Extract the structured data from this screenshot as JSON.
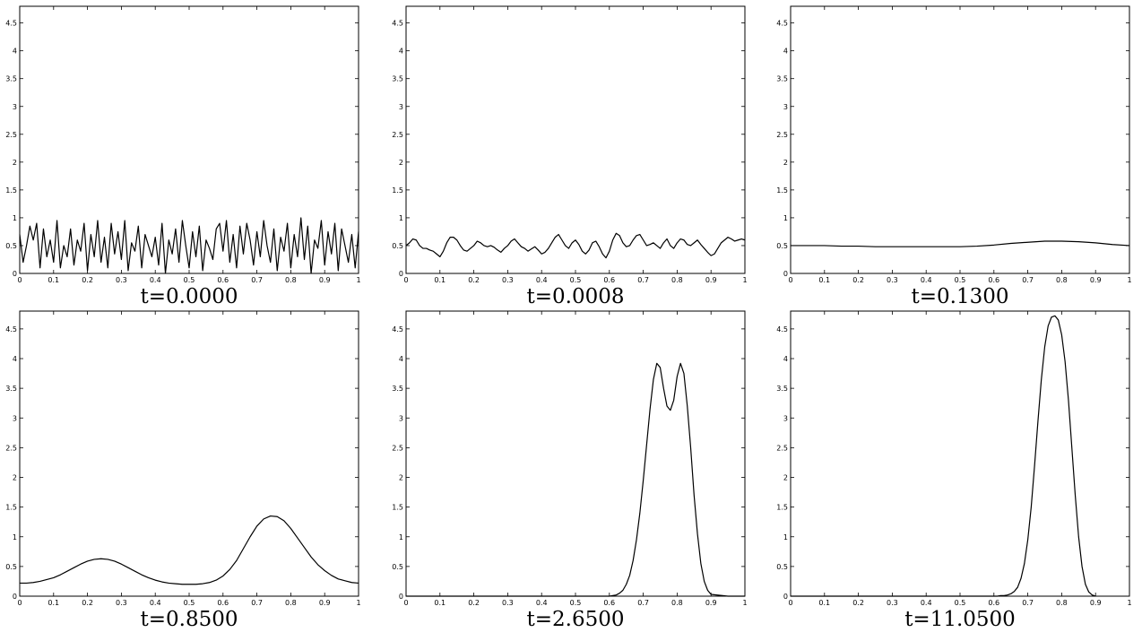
{
  "chart_data": [
    {
      "type": "line",
      "title": "t=0.0000",
      "color": "#000000",
      "xlim": [
        0,
        1
      ],
      "ylim": [
        0,
        4.8
      ],
      "xticks": [
        0,
        0.1,
        0.2,
        0.3,
        0.4,
        0.5,
        0.6,
        0.7,
        0.8,
        0.9,
        1
      ],
      "yticks": [
        0,
        0.5,
        1,
        1.5,
        2,
        2.5,
        3,
        3.5,
        4,
        4.5
      ],
      "x": [
        0,
        0.01,
        0.02,
        0.03,
        0.04,
        0.05,
        0.06,
        0.07,
        0.08,
        0.09,
        0.1,
        0.11,
        0.12,
        0.13,
        0.14,
        0.15,
        0.16,
        0.17,
        0.18,
        0.19,
        0.2,
        0.21,
        0.22,
        0.23,
        0.24,
        0.25,
        0.26,
        0.27,
        0.28,
        0.29,
        0.3,
        0.31,
        0.32,
        0.33,
        0.34,
        0.35,
        0.36,
        0.37,
        0.38,
        0.39,
        0.4,
        0.41,
        0.42,
        0.43,
        0.44,
        0.45,
        0.46,
        0.47,
        0.48,
        0.49,
        0.5,
        0.51,
        0.52,
        0.53,
        0.54,
        0.55,
        0.56,
        0.57,
        0.58,
        0.59,
        0.6,
        0.61,
        0.62,
        0.63,
        0.64,
        0.65,
        0.66,
        0.67,
        0.68,
        0.69,
        0.7,
        0.71,
        0.72,
        0.73,
        0.74,
        0.75,
        0.76,
        0.77,
        0.78,
        0.79,
        0.8,
        0.81,
        0.82,
        0.83,
        0.84,
        0.85,
        0.86,
        0.87,
        0.88,
        0.89,
        0.9,
        0.91,
        0.92,
        0.93,
        0.94,
        0.95,
        0.96,
        0.97,
        0.98,
        0.99,
        1
      ],
      "values": [
        0.7,
        0.2,
        0.5,
        0.85,
        0.6,
        0.9,
        0.1,
        0.8,
        0.3,
        0.6,
        0.2,
        0.95,
        0.1,
        0.5,
        0.3,
        0.8,
        0.15,
        0.6,
        0.4,
        0.9,
        0.05,
        0.7,
        0.3,
        0.95,
        0.2,
        0.65,
        0.1,
        0.9,
        0.35,
        0.75,
        0.25,
        0.95,
        0.05,
        0.55,
        0.4,
        0.85,
        0.1,
        0.7,
        0.5,
        0.3,
        0.65,
        0.15,
        0.9,
        0,
        0.6,
        0.35,
        0.8,
        0.2,
        0.95,
        0.5,
        0.1,
        0.75,
        0.3,
        0.85,
        0.05,
        0.6,
        0.45,
        0.25,
        0.8,
        0.9,
        0.4,
        0.95,
        0.2,
        0.7,
        0.1,
        0.85,
        0.35,
        0.9,
        0.6,
        0.15,
        0.75,
        0.3,
        0.95,
        0.5,
        0.2,
        0.8,
        0.05,
        0.65,
        0.4,
        0.9,
        0.1,
        0.7,
        0.3,
        1,
        0.25,
        0.85,
        0,
        0.6,
        0.45,
        0.95,
        0.15,
        0.75,
        0.35,
        0.9,
        0.05,
        0.8,
        0.5,
        0.2,
        0.7,
        0.1,
        0.75
      ]
    },
    {
      "type": "line",
      "title": "t=0.0008",
      "color": "#000000",
      "xlim": [
        0,
        1
      ],
      "ylim": [
        0,
        4.8
      ],
      "xticks": [
        0,
        0.1,
        0.2,
        0.3,
        0.4,
        0.5,
        0.6,
        0.7,
        0.8,
        0.9,
        1
      ],
      "yticks": [
        0,
        0.5,
        1,
        1.5,
        2,
        2.5,
        3,
        3.5,
        4,
        4.5
      ],
      "x": [
        0,
        0.01,
        0.02,
        0.03,
        0.04,
        0.05,
        0.06,
        0.07,
        0.08,
        0.09,
        0.1,
        0.11,
        0.12,
        0.13,
        0.14,
        0.15,
        0.16,
        0.17,
        0.18,
        0.19,
        0.2,
        0.21,
        0.22,
        0.23,
        0.24,
        0.25,
        0.26,
        0.27,
        0.28,
        0.29,
        0.3,
        0.31,
        0.32,
        0.33,
        0.34,
        0.35,
        0.36,
        0.37,
        0.38,
        0.39,
        0.4,
        0.41,
        0.42,
        0.43,
        0.44,
        0.45,
        0.46,
        0.47,
        0.48,
        0.49,
        0.5,
        0.51,
        0.52,
        0.53,
        0.54,
        0.55,
        0.56,
        0.57,
        0.58,
        0.59,
        0.6,
        0.61,
        0.62,
        0.63,
        0.64,
        0.65,
        0.66,
        0.67,
        0.68,
        0.69,
        0.7,
        0.71,
        0.72,
        0.73,
        0.74,
        0.75,
        0.76,
        0.77,
        0.78,
        0.79,
        0.8,
        0.81,
        0.82,
        0.83,
        0.84,
        0.85,
        0.86,
        0.87,
        0.88,
        0.89,
        0.9,
        0.91,
        0.92,
        0.93,
        0.94,
        0.95,
        0.96,
        0.97,
        0.98,
        0.99,
        1
      ],
      "values": [
        0.5,
        0.55,
        0.62,
        0.6,
        0.5,
        0.45,
        0.45,
        0.42,
        0.4,
        0.35,
        0.3,
        0.4,
        0.55,
        0.65,
        0.65,
        0.6,
        0.5,
        0.42,
        0.4,
        0.45,
        0.5,
        0.58,
        0.55,
        0.5,
        0.48,
        0.5,
        0.47,
        0.42,
        0.38,
        0.45,
        0.5,
        0.58,
        0.62,
        0.55,
        0.48,
        0.45,
        0.4,
        0.44,
        0.48,
        0.42,
        0.35,
        0.38,
        0.45,
        0.55,
        0.65,
        0.7,
        0.6,
        0.5,
        0.45,
        0.55,
        0.6,
        0.52,
        0.4,
        0.35,
        0.42,
        0.55,
        0.58,
        0.48,
        0.35,
        0.28,
        0.4,
        0.6,
        0.72,
        0.68,
        0.55,
        0.48,
        0.5,
        0.6,
        0.68,
        0.7,
        0.6,
        0.5,
        0.52,
        0.55,
        0.5,
        0.45,
        0.55,
        0.62,
        0.5,
        0.45,
        0.55,
        0.62,
        0.6,
        0.52,
        0.5,
        0.55,
        0.6,
        0.52,
        0.45,
        0.38,
        0.32,
        0.35,
        0.45,
        0.55,
        0.6,
        0.65,
        0.62,
        0.58,
        0.6,
        0.62,
        0.6
      ]
    },
    {
      "type": "line",
      "title": "t=0.1300",
      "color": "#000000",
      "xlim": [
        0,
        1
      ],
      "ylim": [
        0,
        4.8
      ],
      "xticks": [
        0,
        0.1,
        0.2,
        0.3,
        0.4,
        0.5,
        0.6,
        0.7,
        0.8,
        0.9,
        1
      ],
      "yticks": [
        0,
        0.5,
        1,
        1.5,
        2,
        2.5,
        3,
        3.5,
        4,
        4.5
      ],
      "x": [
        0,
        0.05,
        0.1,
        0.15,
        0.2,
        0.25,
        0.3,
        0.35,
        0.4,
        0.45,
        0.5,
        0.55,
        0.6,
        0.65,
        0.7,
        0.75,
        0.8,
        0.85,
        0.9,
        0.95,
        1
      ],
      "values": [
        0.5,
        0.5,
        0.5,
        0.49,
        0.49,
        0.48,
        0.48,
        0.48,
        0.48,
        0.48,
        0.48,
        0.49,
        0.51,
        0.54,
        0.56,
        0.58,
        0.58,
        0.57,
        0.55,
        0.52,
        0.5
      ]
    },
    {
      "type": "line",
      "title": "t=0.8500",
      "color": "#000000",
      "xlim": [
        0,
        1
      ],
      "ylim": [
        0,
        4.8
      ],
      "xticks": [
        0,
        0.1,
        0.2,
        0.3,
        0.4,
        0.5,
        0.6,
        0.7,
        0.8,
        0.9,
        1
      ],
      "yticks": [
        0,
        0.5,
        1,
        1.5,
        2,
        2.5,
        3,
        3.5,
        4,
        4.5
      ],
      "x": [
        0,
        0.02,
        0.04,
        0.06,
        0.08,
        0.1,
        0.12,
        0.14,
        0.16,
        0.18,
        0.2,
        0.22,
        0.24,
        0.26,
        0.28,
        0.3,
        0.32,
        0.34,
        0.36,
        0.38,
        0.4,
        0.42,
        0.44,
        0.46,
        0.48,
        0.5,
        0.52,
        0.54,
        0.56,
        0.58,
        0.6,
        0.62,
        0.64,
        0.66,
        0.68,
        0.7,
        0.72,
        0.74,
        0.76,
        0.78,
        0.8,
        0.82,
        0.84,
        0.86,
        0.88,
        0.9,
        0.92,
        0.94,
        0.96,
        0.98,
        1
      ],
      "values": [
        0.22,
        0.22,
        0.23,
        0.25,
        0.28,
        0.31,
        0.36,
        0.42,
        0.48,
        0.54,
        0.59,
        0.62,
        0.63,
        0.62,
        0.59,
        0.54,
        0.48,
        0.42,
        0.36,
        0.31,
        0.27,
        0.24,
        0.22,
        0.21,
        0.2,
        0.2,
        0.2,
        0.21,
        0.23,
        0.27,
        0.34,
        0.45,
        0.6,
        0.8,
        1.0,
        1.18,
        1.3,
        1.35,
        1.34,
        1.27,
        1.14,
        0.98,
        0.82,
        0.66,
        0.53,
        0.43,
        0.35,
        0.29,
        0.26,
        0.23,
        0.22
      ]
    },
    {
      "type": "line",
      "title": "t=2.6500",
      "color": "#000000",
      "xlim": [
        0,
        1
      ],
      "ylim": [
        0,
        4.8
      ],
      "xticks": [
        0,
        0.1,
        0.2,
        0.3,
        0.4,
        0.5,
        0.6,
        0.7,
        0.8,
        0.9,
        1
      ],
      "yticks": [
        0,
        0.5,
        1,
        1.5,
        2,
        2.5,
        3,
        3.5,
        4,
        4.5
      ],
      "x": [
        0,
        0.1,
        0.2,
        0.3,
        0.4,
        0.5,
        0.6,
        0.61,
        0.62,
        0.63,
        0.64,
        0.65,
        0.66,
        0.67,
        0.68,
        0.69,
        0.7,
        0.71,
        0.72,
        0.73,
        0.74,
        0.75,
        0.76,
        0.77,
        0.78,
        0.79,
        0.8,
        0.81,
        0.82,
        0.83,
        0.84,
        0.85,
        0.86,
        0.87,
        0.88,
        0.89,
        0.9,
        0.95,
        1
      ],
      "values": [
        0,
        0,
        0,
        0,
        0,
        0,
        0,
        0.01,
        0.02,
        0.05,
        0.1,
        0.2,
        0.35,
        0.6,
        0.95,
        1.4,
        1.95,
        2.55,
        3.15,
        3.65,
        3.92,
        3.85,
        3.5,
        3.2,
        3.13,
        3.3,
        3.7,
        3.92,
        3.75,
        3.2,
        2.5,
        1.7,
        1.05,
        0.55,
        0.25,
        0.1,
        0.03,
        0,
        0
      ]
    },
    {
      "type": "line",
      "title": "t=11.0500",
      "color": "#000000",
      "xlim": [
        0,
        1
      ],
      "ylim": [
        0,
        4.8
      ],
      "xticks": [
        0,
        0.1,
        0.2,
        0.3,
        0.4,
        0.5,
        0.6,
        0.7,
        0.8,
        0.9,
        1
      ],
      "yticks": [
        0,
        0.5,
        1,
        1.5,
        2,
        2.5,
        3,
        3.5,
        4,
        4.5
      ],
      "x": [
        0,
        0.1,
        0.2,
        0.3,
        0.4,
        0.5,
        0.6,
        0.61,
        0.62,
        0.63,
        0.64,
        0.65,
        0.66,
        0.67,
        0.68,
        0.69,
        0.7,
        0.71,
        0.72,
        0.73,
        0.74,
        0.75,
        0.76,
        0.77,
        0.78,
        0.79,
        0.8,
        0.81,
        0.82,
        0.83,
        0.84,
        0.85,
        0.86,
        0.87,
        0.88,
        0.89,
        0.9
      ],
      "values": [
        0,
        0,
        0,
        0,
        0,
        0,
        0,
        0,
        0.01,
        0.01,
        0.02,
        0.04,
        0.08,
        0.15,
        0.3,
        0.55,
        0.95,
        1.5,
        2.2,
        2.95,
        3.65,
        4.2,
        4.55,
        4.7,
        4.72,
        4.65,
        4.4,
        3.95,
        3.3,
        2.5,
        1.7,
        1.0,
        0.5,
        0.2,
        0.07,
        0.02,
        0
      ]
    }
  ]
}
